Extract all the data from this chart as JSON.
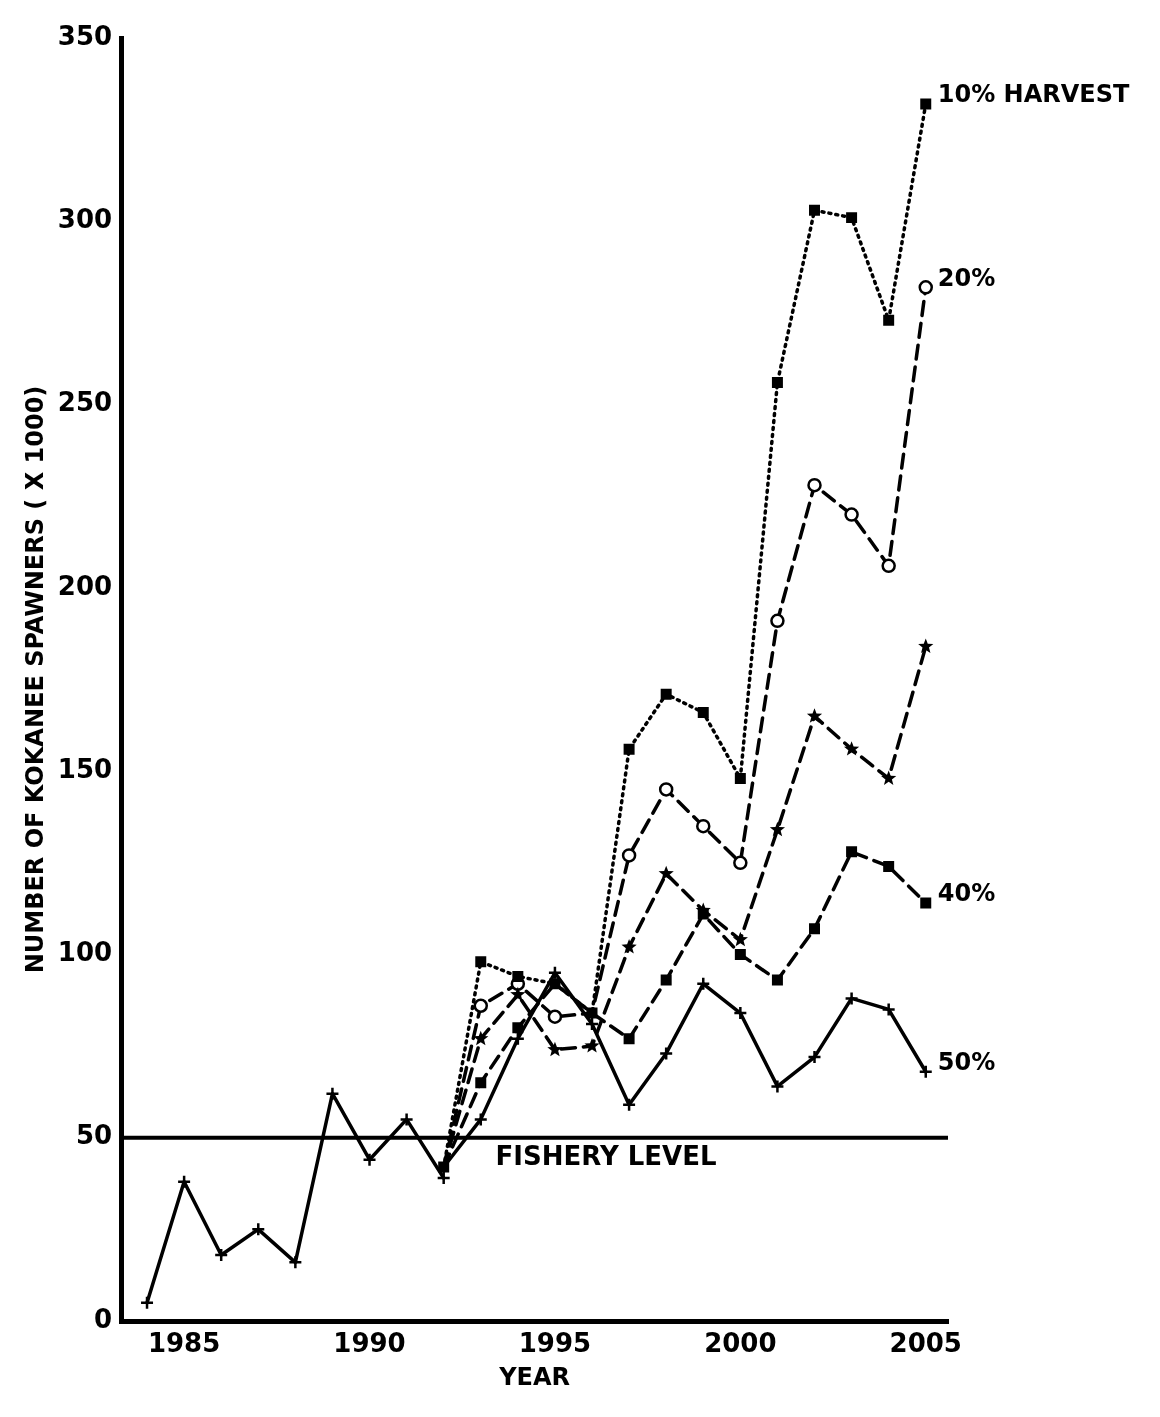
{
  "chart_data": {
    "type": "line",
    "xlabel": "YEAR",
    "ylabel": "NUMBER OF KOKANEE SPAWNERS ( X 1000)",
    "xlim": [
      1983.3,
      2005.6
    ],
    "xticks": [
      1985,
      1990,
      1995,
      2000,
      2005
    ],
    "ylim": [
      0,
      350
    ],
    "yticks": [
      0,
      50,
      100,
      150,
      200,
      250,
      300,
      350
    ],
    "grid": false,
    "legend": false,
    "ref_lines": [
      {
        "axis": "y",
        "value": 50,
        "label": "FISHERY LEVEL",
        "color": "#000000",
        "line_style": "solid"
      }
    ],
    "series": [
      {
        "color": "#000000",
        "marker": "cross",
        "line_style": "solid",
        "x": [
          1984,
          1985,
          1986,
          1987,
          1988,
          1989,
          1990,
          1991,
          1992
        ],
        "values": [
          5,
          38,
          18,
          25,
          16,
          62,
          44,
          55,
          39
        ]
      },
      {
        "name": "10% HARVEST",
        "color": "#000000",
        "marker": "square",
        "line_style": "dotted",
        "x": [
          1992,
          1993,
          1994,
          1995,
          1996,
          1997,
          1998,
          1999,
          2000,
          2001,
          2002,
          2003,
          2004,
          2005
        ],
        "values": [
          42,
          98,
          94,
          92,
          84,
          156,
          171,
          166,
          148,
          256,
          303,
          301,
          273,
          332
        ]
      },
      {
        "name": "20%",
        "color": "#000000",
        "marker": "circle",
        "line_style": "dashed",
        "x": [
          1992,
          1993,
          1994,
          1995,
          1996,
          1997,
          1998,
          1999,
          2000,
          2001,
          2002,
          2003,
          2004,
          2005
        ],
        "values": [
          42,
          86,
          92,
          83,
          84,
          127,
          145,
          135,
          125,
          191,
          228,
          220,
          206,
          282
        ]
      },
      {
        "color": "#000000",
        "marker": "star",
        "line_style": "dashed",
        "x": [
          1992,
          1993,
          1994,
          1995,
          1996,
          1997,
          1998,
          1999,
          2000,
          2001,
          2002,
          2003,
          2004,
          2005
        ],
        "values": [
          42,
          77,
          89,
          74,
          75,
          102,
          122,
          112,
          104,
          134,
          165,
          156,
          148,
          184
        ]
      },
      {
        "name": "40%",
        "color": "#000000",
        "marker": "square",
        "line_style": "dashed",
        "x": [
          1992,
          1993,
          1994,
          1995,
          1996,
          1997,
          1998,
          1999,
          2000,
          2001,
          2002,
          2003,
          2004,
          2005
        ],
        "values": [
          42,
          65,
          80,
          92,
          84,
          77,
          93,
          111,
          100,
          93,
          107,
          128,
          124,
          114
        ]
      },
      {
        "name": "50%",
        "color": "#000000",
        "marker": "cross",
        "line_style": "solid",
        "x": [
          1992,
          1993,
          1994,
          1995,
          1996,
          1997,
          1998,
          1999,
          2000,
          2001,
          2002,
          2003,
          2004,
          2005
        ],
        "values": [
          42,
          55,
          77,
          95,
          81,
          59,
          73,
          92,
          84,
          64,
          72,
          88,
          85,
          68
        ]
      }
    ]
  }
}
